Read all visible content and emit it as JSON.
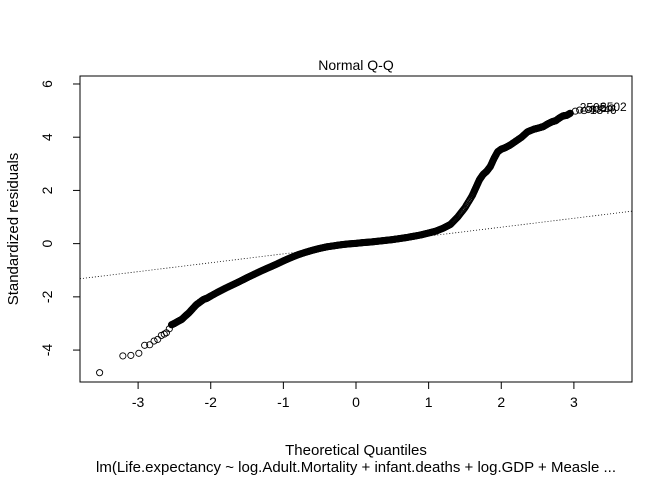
{
  "chart_data": {
    "type": "scatter",
    "title": "Normal Q-Q",
    "xlabel": "Theoretical Quantiles",
    "ylabel": "Standardized residuals",
    "subtitle": "lm(Life.expectancy ~ log.Adult.Mortality + infant.deaths + log.GDP + Measle ...",
    "xlim": [
      -3.8,
      3.8
    ],
    "ylim": [
      -5.2,
      6.3
    ],
    "x_ticks": [
      -3,
      -2,
      -1,
      0,
      1,
      2,
      3
    ],
    "x_tick_labels": [
      "-3",
      "-2",
      "-1",
      "0",
      "1",
      "2",
      "3"
    ],
    "y_ticks": [
      -4,
      -2,
      0,
      2,
      4,
      6
    ],
    "y_tick_labels": [
      "-4",
      "-2",
      "0",
      "2",
      "4",
      "6"
    ],
    "grid": false,
    "marker": "open-circle",
    "reference_line": {
      "style": "dotted",
      "points": [
        [
          -3.8,
          -1.32
        ],
        [
          3.8,
          1.22
        ]
      ]
    },
    "point_labels": [
      {
        "text": "2505",
        "x": 3.08,
        "y": 5.12
      },
      {
        "text": "1846",
        "x": 3.22,
        "y": 5.02
      },
      {
        "text": "2502",
        "x": 3.36,
        "y": 5.14
      }
    ],
    "points": [
      [
        -3.53,
        -4.85
      ],
      [
        -3.21,
        -4.22
      ],
      [
        -3.1,
        -4.2
      ],
      [
        -2.99,
        -4.12
      ],
      [
        -2.91,
        -3.82
      ],
      [
        -2.84,
        -3.8
      ],
      [
        -2.78,
        -3.66
      ],
      [
        -2.73,
        -3.6
      ],
      [
        -2.68,
        -3.45
      ],
      [
        -2.64,
        -3.4
      ],
      [
        -2.61,
        -3.35
      ],
      [
        -2.57,
        -3.2
      ],
      [
        -2.54,
        -3.05
      ],
      [
        -2.5,
        -3.0
      ],
      [
        -2.45,
        -2.92
      ],
      [
        -2.4,
        -2.85
      ],
      [
        -2.35,
        -2.72
      ],
      [
        -2.3,
        -2.6
      ],
      [
        -2.25,
        -2.45
      ],
      [
        -2.2,
        -2.3
      ],
      [
        -2.15,
        -2.2
      ],
      [
        -2.1,
        -2.1
      ],
      [
        -2.05,
        -2.05
      ],
      [
        -2.0,
        -1.97
      ],
      [
        -1.9,
        -1.82
      ],
      [
        -1.8,
        -1.68
      ],
      [
        -1.7,
        -1.55
      ],
      [
        -1.6,
        -1.42
      ],
      [
        -1.5,
        -1.28
      ],
      [
        -1.4,
        -1.15
      ],
      [
        -1.3,
        -1.02
      ],
      [
        -1.2,
        -0.9
      ],
      [
        -1.1,
        -0.78
      ],
      [
        -1.0,
        -0.65
      ],
      [
        -0.9,
        -0.53
      ],
      [
        -0.8,
        -0.42
      ],
      [
        -0.7,
        -0.33
      ],
      [
        -0.6,
        -0.25
      ],
      [
        -0.5,
        -0.18
      ],
      [
        -0.4,
        -0.12
      ],
      [
        -0.3,
        -0.08
      ],
      [
        -0.2,
        -0.04
      ],
      [
        -0.1,
        -0.01
      ],
      [
        0.0,
        0.01
      ],
      [
        0.1,
        0.04
      ],
      [
        0.2,
        0.06
      ],
      [
        0.3,
        0.09
      ],
      [
        0.4,
        0.12
      ],
      [
        0.5,
        0.15
      ],
      [
        0.6,
        0.19
      ],
      [
        0.7,
        0.23
      ],
      [
        0.8,
        0.28
      ],
      [
        0.9,
        0.33
      ],
      [
        1.0,
        0.4
      ],
      [
        1.1,
        0.47
      ],
      [
        1.2,
        0.58
      ],
      [
        1.3,
        0.72
      ],
      [
        1.4,
        1.0
      ],
      [
        1.5,
        1.35
      ],
      [
        1.6,
        1.8
      ],
      [
        1.65,
        2.1
      ],
      [
        1.7,
        2.4
      ],
      [
        1.75,
        2.6
      ],
      [
        1.8,
        2.72
      ],
      [
        1.85,
        2.9
      ],
      [
        1.9,
        3.2
      ],
      [
        1.95,
        3.45
      ],
      [
        2.0,
        3.55
      ],
      [
        2.05,
        3.6
      ],
      [
        2.12,
        3.7
      ],
      [
        2.2,
        3.85
      ],
      [
        2.28,
        4.0
      ],
      [
        2.36,
        4.2
      ],
      [
        2.45,
        4.3
      ],
      [
        2.52,
        4.35
      ],
      [
        2.58,
        4.4
      ],
      [
        2.64,
        4.5
      ],
      [
        2.7,
        4.58
      ],
      [
        2.75,
        4.62
      ],
      [
        2.8,
        4.72
      ],
      [
        2.85,
        4.8
      ],
      [
        2.9,
        4.82
      ],
      [
        2.95,
        4.9
      ],
      [
        3.02,
        4.98
      ],
      [
        3.08,
        5.02
      ],
      [
        3.14,
        5.0
      ],
      [
        3.2,
        5.04
      ],
      [
        3.26,
        5.06
      ],
      [
        3.32,
        5.05
      ],
      [
        3.4,
        5.08
      ],
      [
        3.52,
        5.1
      ]
    ]
  }
}
